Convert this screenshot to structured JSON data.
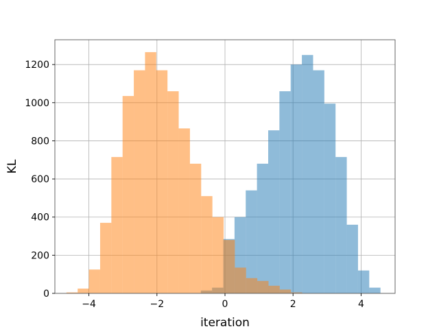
{
  "chart_data": {
    "type": "bar",
    "subtype": "histogram",
    "title": "",
    "xlabel": "iteration",
    "ylabel": "KL",
    "xlim": [
      -5.0,
      5.0
    ],
    "ylim": [
      0,
      1330
    ],
    "xticks": [
      -4,
      -2,
      0,
      2,
      4
    ],
    "xtick_labels": [
      "−4",
      "−2",
      "0",
      "2",
      "4"
    ],
    "yticks": [
      0,
      200,
      400,
      600,
      800,
      1000,
      1200
    ],
    "ytick_labels": [
      "0",
      "200",
      "400",
      "600",
      "800",
      "1000",
      "1200"
    ],
    "grid": true,
    "bin_width": 0.33,
    "series": [
      {
        "color": "#1f77b4",
        "alpha": 0.5,
        "bin_starts": [
          -0.71,
          -0.38,
          -0.05,
          0.28,
          0.61,
          0.94,
          1.27,
          1.6,
          1.93,
          2.26,
          2.59,
          2.92,
          3.25,
          3.58,
          3.91,
          4.24
        ],
        "counts": [
          15,
          30,
          285,
          400,
          540,
          680,
          855,
          1060,
          1200,
          1250,
          1170,
          995,
          715,
          360,
          120,
          30
        ]
      },
      {
        "color": "#ff7f0e",
        "alpha": 0.5,
        "bin_starts": [
          -4.66,
          -4.33,
          -4.0,
          -3.67,
          -3.34,
          -3.01,
          -2.68,
          -2.35,
          -2.02,
          -1.69,
          -1.36,
          -1.03,
          -0.7,
          -0.37,
          -0.04,
          0.29,
          0.62,
          0.95,
          1.28,
          1.61,
          1.94
        ],
        "counts": [
          5,
          25,
          125,
          370,
          715,
          1035,
          1170,
          1265,
          1170,
          1060,
          865,
          680,
          510,
          400,
          280,
          135,
          80,
          65,
          40,
          20,
          5
        ]
      }
    ]
  }
}
